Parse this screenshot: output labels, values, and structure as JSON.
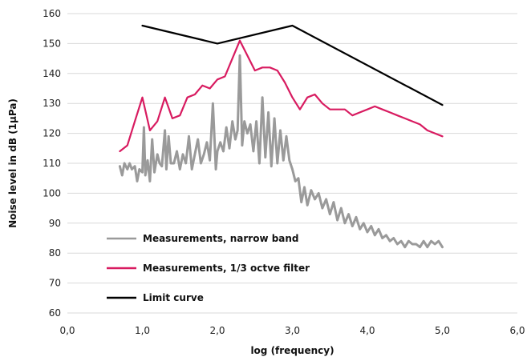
{
  "chart_data": {
    "type": "line",
    "title": "",
    "xlabel": "log (frequency)",
    "ylabel": "Noise level in dB (1µPa)",
    "xlim": [
      0,
      6
    ],
    "ylim": [
      60,
      160
    ],
    "x_ticks": [
      "0,0",
      "1,0",
      "2,0",
      "3,0",
      "4,0",
      "5,0",
      "6,0"
    ],
    "y_ticks": [
      "60",
      "70",
      "80",
      "90",
      "100",
      "110",
      "120",
      "130",
      "140",
      "150",
      "160"
    ],
    "grid": "horizontal",
    "legend_position": "bottom-left-inside",
    "series": [
      {
        "name": "Measurements, narrow band",
        "color": "#9a9a9a",
        "x": [
          0.7,
          0.73,
          0.76,
          0.8,
          0.83,
          0.86,
          0.9,
          0.93,
          0.96,
          1.0,
          1.02,
          1.04,
          1.07,
          1.1,
          1.13,
          1.16,
          1.2,
          1.23,
          1.26,
          1.3,
          1.32,
          1.35,
          1.38,
          1.42,
          1.46,
          1.5,
          1.54,
          1.58,
          1.62,
          1.66,
          1.7,
          1.74,
          1.78,
          1.82,
          1.86,
          1.9,
          1.94,
          1.98,
          2.0,
          2.04,
          2.08,
          2.12,
          2.16,
          2.2,
          2.24,
          2.27,
          2.3,
          2.33,
          2.36,
          2.4,
          2.44,
          2.48,
          2.52,
          2.56,
          2.6,
          2.64,
          2.68,
          2.72,
          2.76,
          2.8,
          2.84,
          2.88,
          2.92,
          2.96,
          3.0,
          3.04,
          3.08,
          3.12,
          3.16,
          3.2,
          3.25,
          3.3,
          3.35,
          3.4,
          3.45,
          3.5,
          3.55,
          3.6,
          3.65,
          3.7,
          3.75,
          3.8,
          3.85,
          3.9,
          3.95,
          4.0,
          4.05,
          4.1,
          4.15,
          4.2,
          4.25,
          4.3,
          4.35,
          4.4,
          4.45,
          4.5,
          4.55,
          4.6,
          4.65,
          4.7,
          4.75,
          4.8,
          4.85,
          4.9,
          4.95,
          5.0
        ],
        "values": [
          109,
          106,
          110,
          108,
          110,
          108,
          109,
          104,
          108,
          107,
          122,
          106,
          111,
          104,
          118,
          107,
          113,
          110,
          109,
          121,
          108,
          119,
          110,
          110,
          114,
          108,
          113,
          110,
          119,
          108,
          113,
          118,
          110,
          113,
          117,
          111,
          130,
          108,
          114,
          117,
          114,
          122,
          115,
          124,
          118,
          121,
          146,
          116,
          124,
          120,
          123,
          114,
          124,
          110,
          132,
          112,
          127,
          109,
          125,
          110,
          121,
          111,
          119,
          111,
          108,
          104,
          105,
          97,
          102,
          96,
          101,
          98,
          100,
          95,
          98,
          93,
          97,
          91,
          95,
          90,
          93,
          89,
          92,
          88,
          90,
          87,
          89,
          86,
          88,
          85,
          86,
          84,
          85,
          83,
          84,
          82,
          84,
          83,
          83,
          82,
          84,
          82,
          84,
          83,
          84,
          82
        ]
      },
      {
        "name": "Measurements, 1/3 octve filter",
        "color": "#d81b60",
        "x": [
          0.7,
          0.8,
          0.9,
          1.0,
          1.1,
          1.2,
          1.3,
          1.4,
          1.5,
          1.6,
          1.7,
          1.8,
          1.9,
          2.0,
          2.1,
          2.2,
          2.3,
          2.4,
          2.5,
          2.6,
          2.7,
          2.8,
          2.9,
          3.0,
          3.1,
          3.2,
          3.3,
          3.4,
          3.5,
          3.6,
          3.7,
          3.8,
          3.9,
          4.0,
          4.1,
          4.2,
          4.3,
          4.4,
          4.5,
          4.6,
          4.7,
          4.8,
          4.9,
          5.0
        ],
        "values": [
          114,
          116,
          124,
          132,
          121,
          124,
          132,
          125,
          126,
          132,
          133,
          136,
          135,
          138,
          139,
          145,
          151,
          146,
          141,
          142,
          142,
          141,
          137,
          132,
          128,
          132,
          133,
          130,
          128,
          128,
          128,
          126,
          127,
          128,
          129,
          128,
          127,
          126,
          125,
          124,
          123,
          121,
          120,
          119
        ]
      },
      {
        "name": "Limit curve",
        "color": "#000000",
        "x": [
          1.0,
          2.0,
          3.0,
          5.0
        ],
        "values": [
          156,
          150,
          156,
          129.5
        ]
      }
    ]
  }
}
